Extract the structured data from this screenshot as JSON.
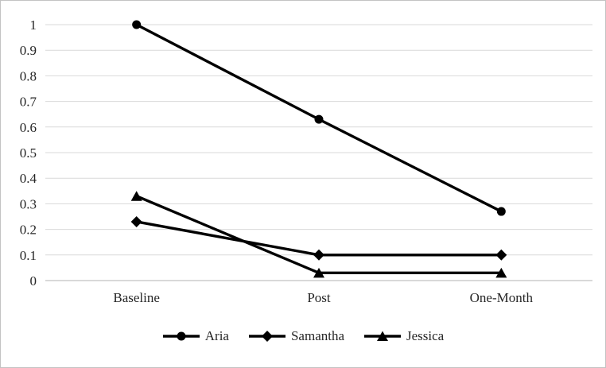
{
  "figure": {
    "background": "#ffffff",
    "border_color": "#c3c3c3"
  },
  "chart_data": {
    "type": "line",
    "title": "",
    "xlabel": "",
    "ylabel": "",
    "categories": [
      "Baseline",
      "Post",
      "One-Month"
    ],
    "series": [
      {
        "name": "Aria",
        "marker": "circle",
        "color": "#000000",
        "values": [
          1.0,
          0.63,
          0.27
        ]
      },
      {
        "name": "Samantha",
        "marker": "diamond",
        "color": "#000000",
        "values": [
          0.23,
          0.1,
          0.1
        ]
      },
      {
        "name": "Jessica",
        "marker": "triangle",
        "color": "#000000",
        "values": [
          0.33,
          0.03,
          0.03
        ]
      }
    ],
    "ylim": [
      0,
      1
    ],
    "yticks": [
      0,
      0.1,
      0.2,
      0.3,
      0.4,
      0.5,
      0.6,
      0.7,
      0.8,
      0.9,
      1
    ],
    "ytick_labels": [
      "0",
      "0.1",
      "0.2",
      "0.3",
      "0.4",
      "0.5",
      "0.6",
      "0.7",
      "0.8",
      "0.9",
      "1"
    ],
    "grid": true,
    "grid_color": "#d9d9d9",
    "axis_color": "#b3b3b3",
    "text_color": "#262626",
    "line_width": 3.4,
    "legend_position": "bottom"
  }
}
